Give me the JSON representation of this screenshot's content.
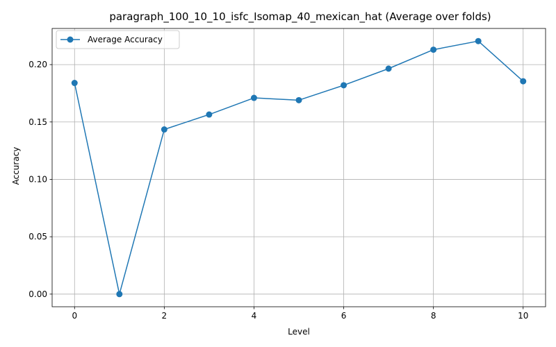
{
  "chart_data": {
    "type": "line",
    "title": "paragraph_100_10_10_isfc_Isomap_40_mexican_hat (Average over folds)",
    "xlabel": "Level",
    "ylabel": "Accuracy",
    "xlim": [
      -0.5,
      10.5
    ],
    "ylim": [
      -0.011,
      0.2315
    ],
    "x_ticks": [
      0,
      2,
      4,
      6,
      8,
      10
    ],
    "x_tick_labels": [
      "0",
      "2",
      "4",
      "6",
      "8",
      "10"
    ],
    "y_ticks": [
      0.0,
      0.05,
      0.1,
      0.15,
      0.2
    ],
    "y_tick_labels": [
      "0.00",
      "0.05",
      "0.10",
      "0.15",
      "0.20"
    ],
    "grid": true,
    "legend_position": "top-left",
    "series": [
      {
        "name": "Average Accuracy",
        "color": "#1f77b4",
        "marker": "circle",
        "x": [
          0,
          1,
          2,
          3,
          4,
          5,
          6,
          7,
          8,
          9,
          10
        ],
        "y": [
          0.184,
          0.0,
          0.1435,
          0.1565,
          0.171,
          0.169,
          0.182,
          0.1965,
          0.213,
          0.2205,
          0.1855
        ]
      }
    ]
  }
}
